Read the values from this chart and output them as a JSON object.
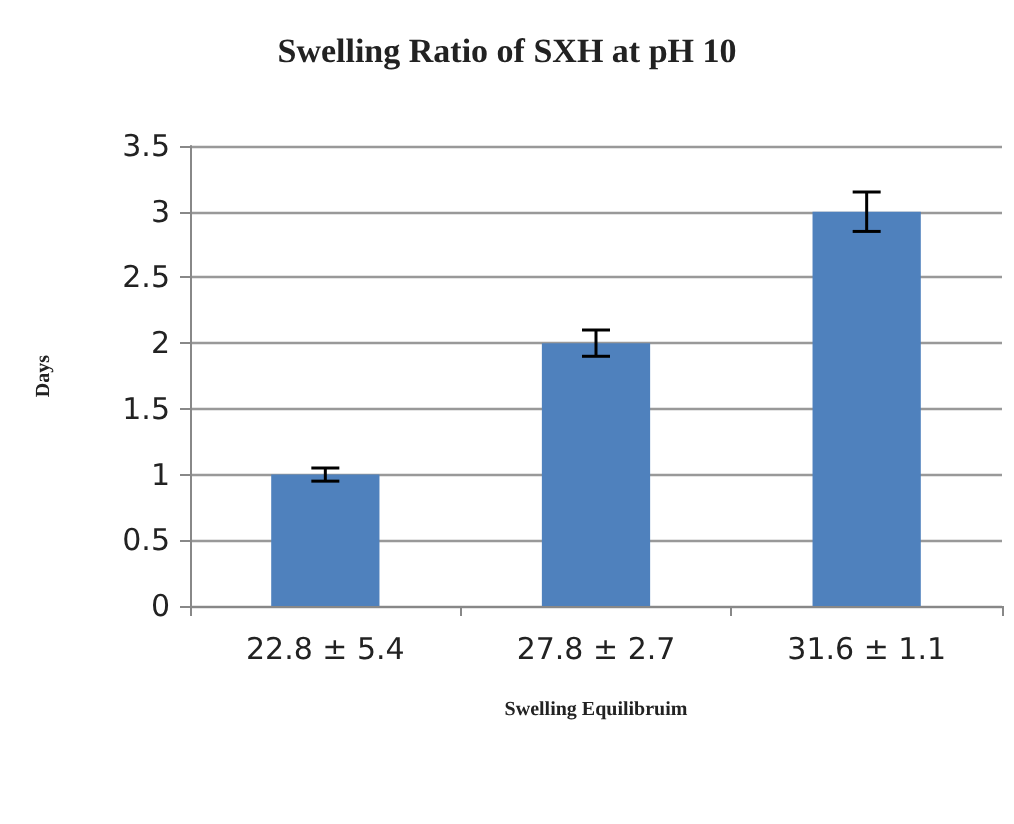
{
  "chart_data": {
    "type": "bar",
    "title": "Swelling Ratio of SXH at pH 10",
    "xlabel": "Swelling Equilibruim",
    "ylabel": "Days",
    "categories": [
      "22.8 ± 5.4",
      "27.8 ± 2.7",
      "31.6 ± 1.1"
    ],
    "values": [
      1,
      2,
      3
    ],
    "errors": [
      0.05,
      0.1,
      0.15
    ],
    "color": "#4f81bd",
    "ylim": [
      0,
      3.5
    ],
    "yticks": [
      0,
      0.5,
      1,
      1.5,
      2,
      2.5,
      3,
      3.5
    ],
    "grid": "y"
  }
}
